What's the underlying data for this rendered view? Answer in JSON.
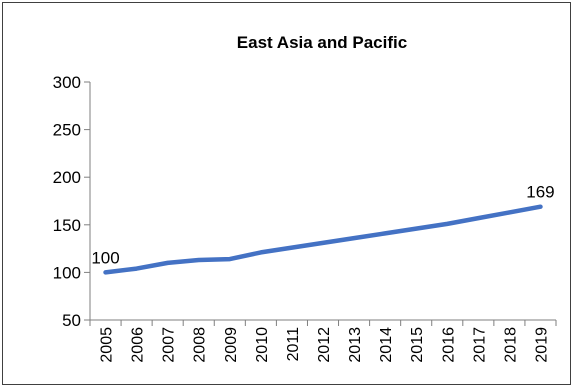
{
  "chart_data": {
    "type": "line",
    "title": "East Asia and Pacific",
    "xlabel": "",
    "ylabel": "",
    "x": [
      "2005",
      "2006",
      "2007",
      "2008",
      "2009",
      "2010",
      "2011",
      "2012",
      "2013",
      "2014",
      "2015",
      "2016",
      "2017",
      "2018",
      "2019"
    ],
    "series": [
      {
        "values": [
          100,
          104,
          110,
          113,
          114,
          121,
          126,
          131,
          136,
          141,
          146,
          151,
          157,
          163,
          169
        ],
        "color": "#4472C4"
      }
    ],
    "ylim": [
      50,
      300
    ],
    "yticks": [
      "50",
      "100",
      "150",
      "200",
      "250",
      "300"
    ],
    "data_labels": [
      {
        "index": 0,
        "text": "100"
      },
      {
        "index": 14,
        "text": "169"
      }
    ],
    "grid": false,
    "legend": "none"
  }
}
